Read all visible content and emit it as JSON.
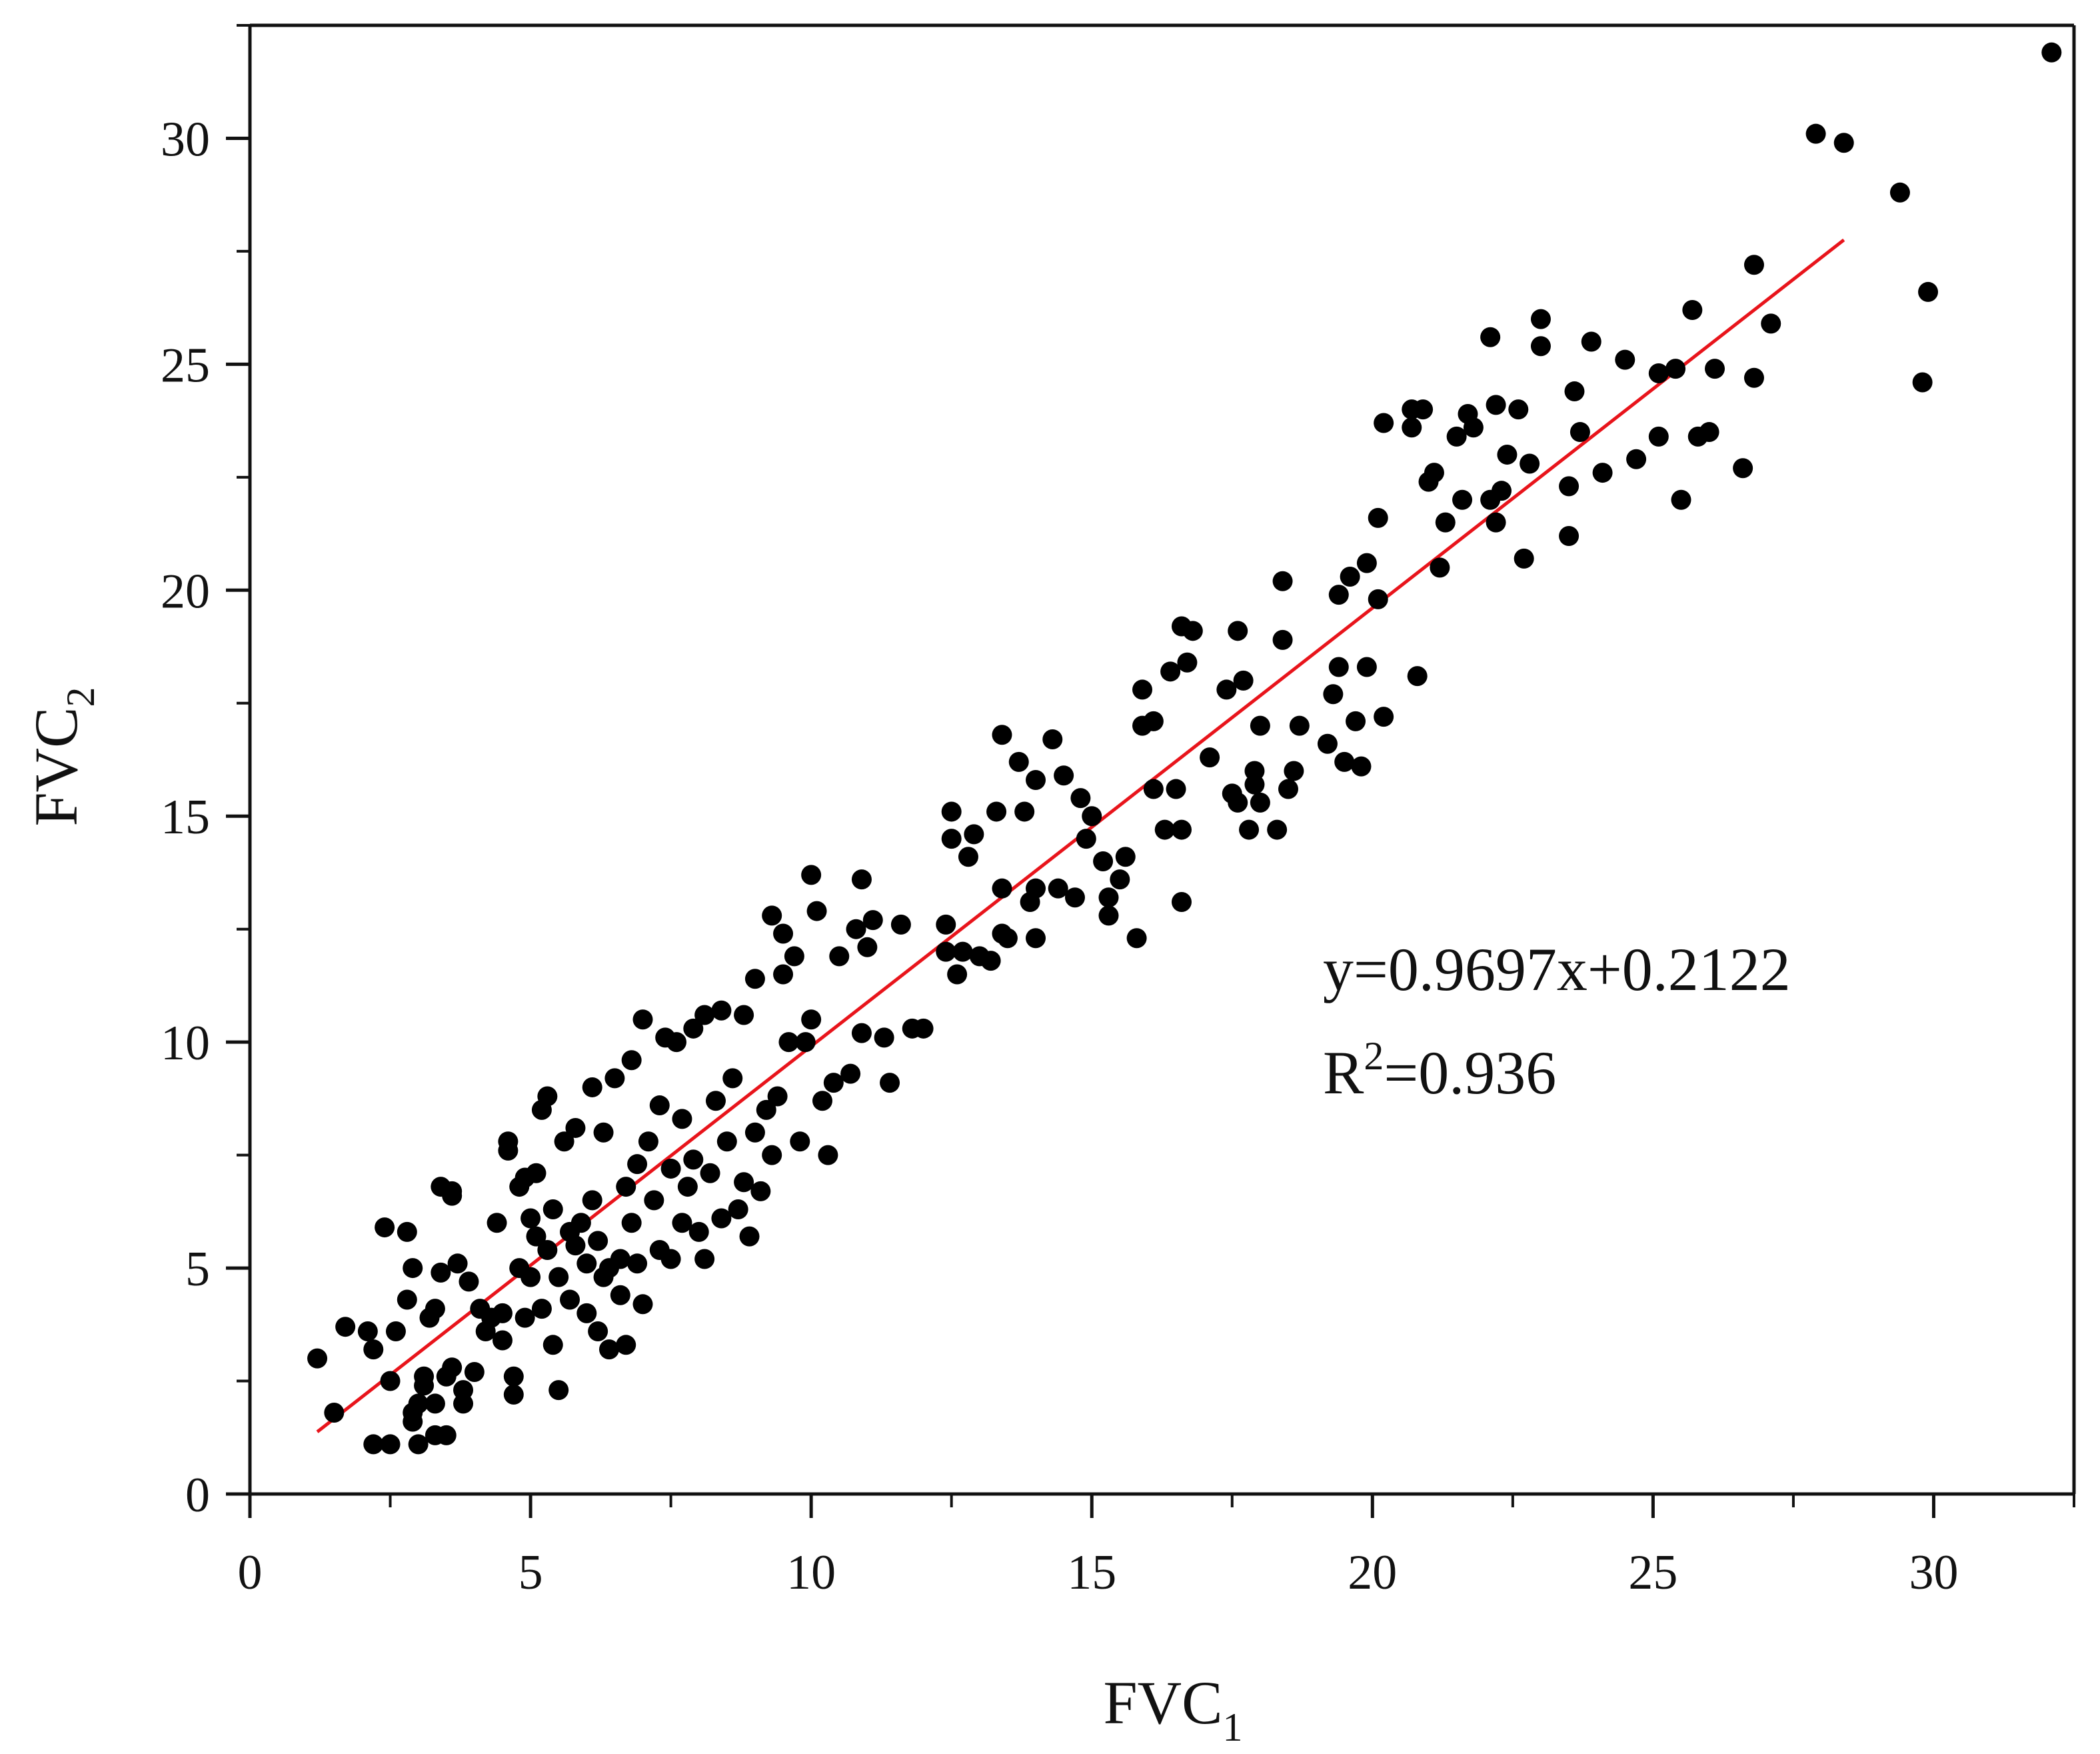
{
  "chart_data": {
    "type": "scatter",
    "title": "",
    "xlabel": "FVC",
    "xlabel_sub": "1",
    "ylabel": "FVC",
    "ylabel_sub": "2",
    "xlim": [
      0,
      32.5
    ],
    "ylim": [
      0,
      32.5
    ],
    "xticks": [
      0,
      5,
      10,
      15,
      20,
      25,
      30
    ],
    "yticks": [
      0,
      5,
      10,
      15,
      20,
      25,
      30
    ],
    "grid": false,
    "legend": "none",
    "colors": {
      "points": "#000000",
      "fit_line": "#e8141b",
      "axes": "#111111"
    },
    "fit_line": {
      "slope": 0.9697,
      "intercept": 0.2122,
      "x_range": [
        1.2,
        28.4
      ]
    },
    "annotation": {
      "equation": "y=0.9697x+0.2122",
      "r2_prefix": "R",
      "r2_sup": "2",
      "r2_value": "=0.936"
    },
    "series": [
      {
        "points": [
          [
            1.2,
            3.0
          ],
          [
            1.5,
            1.8
          ],
          [
            1.7,
            3.7
          ],
          [
            2.1,
            3.6
          ],
          [
            2.2,
            1.1
          ],
          [
            2.2,
            3.2
          ],
          [
            2.4,
            5.9
          ],
          [
            2.5,
            1.1
          ],
          [
            2.5,
            2.5
          ],
          [
            2.6,
            3.6
          ],
          [
            2.8,
            4.3
          ],
          [
            2.8,
            5.8
          ],
          [
            2.9,
            1.8
          ],
          [
            2.9,
            1.6
          ],
          [
            2.9,
            5.0
          ],
          [
            3.0,
            1.1
          ],
          [
            3.0,
            2.0
          ],
          [
            3.1,
            2.6
          ],
          [
            3.1,
            2.4
          ],
          [
            3.2,
            3.9
          ],
          [
            3.3,
            1.3
          ],
          [
            3.3,
            2.0
          ],
          [
            3.3,
            4.1
          ],
          [
            3.4,
            6.8
          ],
          [
            3.4,
            4.9
          ],
          [
            3.5,
            1.3
          ],
          [
            3.5,
            2.6
          ],
          [
            3.6,
            6.6
          ],
          [
            3.6,
            6.7
          ],
          [
            3.6,
            2.8
          ],
          [
            3.7,
            5.1
          ],
          [
            3.8,
            2.3
          ],
          [
            3.8,
            2.0
          ],
          [
            3.9,
            4.7
          ],
          [
            4.0,
            2.7
          ],
          [
            4.1,
            4.1
          ],
          [
            4.2,
            3.6
          ],
          [
            4.3,
            3.9
          ],
          [
            4.4,
            6.0
          ],
          [
            4.5,
            4.0
          ],
          [
            4.5,
            3.4
          ],
          [
            4.6,
            7.8
          ],
          [
            4.6,
            7.6
          ],
          [
            4.7,
            2.6
          ],
          [
            4.7,
            2.2
          ],
          [
            4.8,
            6.8
          ],
          [
            4.8,
            5.0
          ],
          [
            4.9,
            7.0
          ],
          [
            4.9,
            3.9
          ],
          [
            5.0,
            6.1
          ],
          [
            5.0,
            4.8
          ],
          [
            5.1,
            5.7
          ],
          [
            5.1,
            7.1
          ],
          [
            5.2,
            4.1
          ],
          [
            5.2,
            8.5
          ],
          [
            5.3,
            8.8
          ],
          [
            5.3,
            5.4
          ],
          [
            5.4,
            3.3
          ],
          [
            5.4,
            6.3
          ],
          [
            5.5,
            2.3
          ],
          [
            5.5,
            4.8
          ],
          [
            5.6,
            7.8
          ],
          [
            5.7,
            4.3
          ],
          [
            5.7,
            5.8
          ],
          [
            5.8,
            8.1
          ],
          [
            5.8,
            5.5
          ],
          [
            5.9,
            6.0
          ],
          [
            6.0,
            4.0
          ],
          [
            6.0,
            5.1
          ],
          [
            6.1,
            9.0
          ],
          [
            6.1,
            6.5
          ],
          [
            6.2,
            3.6
          ],
          [
            6.2,
            5.6
          ],
          [
            6.3,
            8.0
          ],
          [
            6.3,
            4.8
          ],
          [
            6.4,
            3.2
          ],
          [
            6.4,
            5.0
          ],
          [
            6.5,
            9.2
          ],
          [
            6.6,
            4.4
          ],
          [
            6.6,
            5.2
          ],
          [
            6.7,
            6.8
          ],
          [
            6.7,
            3.3
          ],
          [
            6.8,
            9.6
          ],
          [
            6.8,
            6.0
          ],
          [
            6.9,
            7.3
          ],
          [
            6.9,
            5.1
          ],
          [
            7.0,
            4.2
          ],
          [
            7.0,
            10.5
          ],
          [
            7.1,
            7.8
          ],
          [
            7.2,
            6.5
          ],
          [
            7.3,
            5.4
          ],
          [
            7.3,
            8.6
          ],
          [
            7.4,
            10.1
          ],
          [
            7.5,
            7.2
          ],
          [
            7.5,
            5.2
          ],
          [
            7.6,
            10.0
          ],
          [
            7.7,
            6.0
          ],
          [
            7.7,
            8.3
          ],
          [
            7.8,
            6.8
          ],
          [
            7.9,
            10.3
          ],
          [
            7.9,
            7.4
          ],
          [
            8.0,
            5.8
          ],
          [
            8.1,
            10.6
          ],
          [
            8.1,
            5.2
          ],
          [
            8.2,
            7.1
          ],
          [
            8.3,
            8.7
          ],
          [
            8.4,
            10.7
          ],
          [
            8.4,
            6.1
          ],
          [
            8.5,
            7.8
          ],
          [
            8.6,
            9.2
          ],
          [
            8.7,
            6.3
          ],
          [
            8.8,
            10.6
          ],
          [
            8.8,
            6.9
          ],
          [
            8.9,
            5.7
          ],
          [
            9.0,
            11.4
          ],
          [
            9.0,
            8.0
          ],
          [
            9.1,
            6.7
          ],
          [
            9.2,
            8.5
          ],
          [
            9.3,
            12.8
          ],
          [
            9.3,
            7.5
          ],
          [
            9.4,
            8.8
          ],
          [
            9.5,
            11.5
          ],
          [
            9.5,
            12.4
          ],
          [
            9.6,
            10.0
          ],
          [
            9.7,
            11.9
          ],
          [
            9.8,
            7.8
          ],
          [
            9.9,
            10.0
          ],
          [
            10.0,
            13.7
          ],
          [
            10.0,
            10.5
          ],
          [
            10.1,
            12.9
          ],
          [
            10.2,
            8.7
          ],
          [
            10.3,
            7.5
          ],
          [
            10.4,
            9.1
          ],
          [
            10.5,
            11.9
          ],
          [
            10.7,
            9.3
          ],
          [
            10.8,
            12.5
          ],
          [
            10.9,
            13.6
          ],
          [
            10.9,
            10.2
          ],
          [
            11.0,
            12.1
          ],
          [
            11.1,
            12.7
          ],
          [
            11.3,
            10.1
          ],
          [
            11.4,
            9.1
          ],
          [
            11.6,
            12.6
          ],
          [
            11.8,
            10.3
          ],
          [
            12.0,
            10.3
          ],
          [
            12.4,
            12.6
          ],
          [
            12.4,
            12.0
          ],
          [
            12.5,
            14.5
          ],
          [
            12.5,
            15.1
          ],
          [
            12.6,
            11.5
          ],
          [
            12.7,
            12.0
          ],
          [
            12.8,
            14.1
          ],
          [
            12.9,
            14.6
          ],
          [
            13.0,
            11.9
          ],
          [
            13.2,
            11.8
          ],
          [
            13.3,
            15.1
          ],
          [
            13.4,
            16.8
          ],
          [
            13.4,
            13.4
          ],
          [
            13.4,
            12.4
          ],
          [
            13.5,
            12.3
          ],
          [
            13.7,
            16.2
          ],
          [
            13.8,
            15.1
          ],
          [
            13.9,
            13.1
          ],
          [
            14.0,
            15.8
          ],
          [
            14.0,
            13.4
          ],
          [
            14.0,
            12.3
          ],
          [
            14.3,
            16.7
          ],
          [
            14.4,
            13.4
          ],
          [
            14.5,
            15.9
          ],
          [
            14.7,
            13.2
          ],
          [
            14.8,
            15.4
          ],
          [
            14.9,
            14.5
          ],
          [
            15.0,
            15.0
          ],
          [
            15.2,
            14.0
          ],
          [
            15.3,
            13.2
          ],
          [
            15.3,
            12.8
          ],
          [
            15.5,
            13.6
          ],
          [
            15.6,
            14.1
          ],
          [
            15.8,
            12.3
          ],
          [
            15.9,
            17.8
          ],
          [
            15.9,
            17.0
          ],
          [
            16.1,
            15.6
          ],
          [
            16.1,
            17.1
          ],
          [
            16.3,
            14.7
          ],
          [
            16.4,
            18.2
          ],
          [
            16.5,
            15.6
          ],
          [
            16.6,
            19.2
          ],
          [
            16.6,
            14.7
          ],
          [
            16.6,
            13.1
          ],
          [
            16.7,
            18.4
          ],
          [
            16.8,
            19.1
          ],
          [
            17.1,
            16.3
          ],
          [
            17.4,
            17.8
          ],
          [
            17.5,
            15.5
          ],
          [
            17.6,
            19.1
          ],
          [
            17.6,
            15.3
          ],
          [
            17.7,
            18.0
          ],
          [
            17.8,
            14.7
          ],
          [
            17.9,
            16.0
          ],
          [
            17.9,
            15.7
          ],
          [
            18.0,
            15.3
          ],
          [
            18.0,
            17.0
          ],
          [
            18.3,
            14.7
          ],
          [
            18.4,
            20.2
          ],
          [
            18.4,
            18.9
          ],
          [
            18.5,
            15.6
          ],
          [
            18.6,
            16.0
          ],
          [
            18.7,
            17.0
          ],
          [
            19.2,
            16.6
          ],
          [
            19.3,
            17.7
          ],
          [
            19.4,
            19.9
          ],
          [
            19.4,
            18.3
          ],
          [
            19.5,
            16.2
          ],
          [
            19.6,
            20.3
          ],
          [
            19.7,
            17.1
          ],
          [
            19.8,
            16.1
          ],
          [
            19.9,
            20.6
          ],
          [
            19.9,
            18.3
          ],
          [
            20.1,
            21.6
          ],
          [
            20.1,
            19.8
          ],
          [
            20.2,
            23.7
          ],
          [
            20.2,
            17.2
          ],
          [
            20.7,
            24.0
          ],
          [
            20.7,
            23.6
          ],
          [
            20.8,
            18.1
          ],
          [
            20.9,
            24.0
          ],
          [
            21.0,
            22.4
          ],
          [
            21.1,
            22.6
          ],
          [
            21.2,
            20.5
          ],
          [
            21.3,
            21.5
          ],
          [
            21.5,
            23.4
          ],
          [
            21.6,
            22.0
          ],
          [
            21.7,
            23.9
          ],
          [
            21.8,
            23.6
          ],
          [
            22.1,
            22.0
          ],
          [
            22.1,
            25.6
          ],
          [
            22.2,
            24.1
          ],
          [
            22.2,
            21.5
          ],
          [
            22.3,
            22.2
          ],
          [
            22.4,
            23.0
          ],
          [
            22.6,
            24.0
          ],
          [
            22.7,
            20.7
          ],
          [
            22.8,
            22.8
          ],
          [
            23.0,
            26.0
          ],
          [
            23.0,
            25.4
          ],
          [
            23.5,
            22.3
          ],
          [
            23.5,
            21.2
          ],
          [
            23.6,
            24.4
          ],
          [
            23.7,
            23.5
          ],
          [
            23.9,
            25.5
          ],
          [
            24.1,
            22.6
          ],
          [
            24.5,
            25.1
          ],
          [
            24.7,
            22.9
          ],
          [
            25.1,
            24.8
          ],
          [
            25.1,
            23.4
          ],
          [
            25.4,
            24.9
          ],
          [
            25.5,
            22.0
          ],
          [
            25.7,
            26.2
          ],
          [
            25.8,
            23.4
          ],
          [
            26.0,
            23.5
          ],
          [
            26.1,
            24.9
          ],
          [
            26.6,
            22.7
          ],
          [
            26.8,
            27.2
          ],
          [
            26.8,
            24.7
          ],
          [
            27.1,
            25.9
          ],
          [
            27.9,
            30.1
          ],
          [
            28.4,
            29.9
          ],
          [
            29.4,
            28.8
          ],
          [
            29.8,
            24.6
          ],
          [
            29.9,
            26.6
          ],
          [
            32.1,
            31.9
          ]
        ]
      }
    ]
  }
}
